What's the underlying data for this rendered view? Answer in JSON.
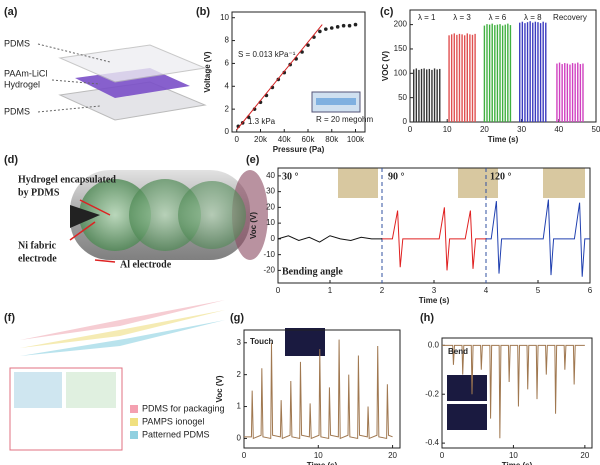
{
  "diagrams": {
    "a": {
      "label": "(a)",
      "texts": [
        "PDMS",
        "PAAm-LiCl",
        "Hydrogel",
        "PDMS"
      ]
    },
    "d": {
      "label": "(d)",
      "texts": [
        "Hydrogel encapsulated",
        "by PDMS",
        "Ni fabric",
        "electrode",
        "Al electrode"
      ]
    },
    "f": {
      "label": "(f)",
      "texts": [
        "PDMS for packaging",
        "PAMPS ionogel",
        "Patterned PDMS"
      ]
    }
  },
  "chart_data": [
    {
      "type": "scatter",
      "label": "(b)",
      "xlabel": "Pressure (Pa)",
      "ylabel": "Voltage (V)",
      "xlim": [
        -4000,
        108000
      ],
      "ylim": [
        0,
        10.5
      ],
      "xticks": [
        0,
        {
          "value": 20000,
          "label": "20k"
        },
        {
          "value": 40000,
          "label": "40k"
        },
        {
          "value": 60000,
          "label": "60k"
        },
        {
          "value": 80000,
          "label": "80k"
        },
        {
          "value": 100000,
          "label": "100k"
        }
      ],
      "yticks": [
        0,
        2,
        4,
        6,
        8,
        10
      ],
      "series": [
        {
          "color": "#222222",
          "x": [
            1300,
            5000,
            10000,
            15000,
            20000,
            25000,
            30000,
            35000,
            40000,
            45000,
            50000,
            55000,
            60000,
            65000,
            70000,
            75000,
            80000,
            85000,
            90000,
            95000,
            100000
          ],
          "values": [
            0.5,
            0.8,
            1.3,
            2.0,
            2.6,
            3.2,
            3.9,
            4.6,
            5.2,
            5.9,
            6.4,
            7.0,
            7.6,
            8.3,
            8.8,
            9.0,
            9.1,
            9.2,
            9.3,
            9.3,
            9.4
          ]
        },
        {
          "color": "#d42020",
          "style": "line",
          "x": [
            0,
            72000
          ],
          "values": [
            0.2,
            9.4
          ]
        }
      ],
      "annotations": [
        "S = 0.013 kPa⁻¹",
        "1.3 kPa",
        "R = 20 megohm"
      ]
    },
    {
      "type": "stem",
      "label": "(c)",
      "xlabel": "Time (s)",
      "ylabel": "VOC (V)",
      "xlim": [
        0,
        50
      ],
      "ylim": [
        0,
        230
      ],
      "xticks": [
        0,
        10,
        20,
        30,
        40,
        50
      ],
      "yticks": [
        0,
        50,
        100,
        150,
        200
      ],
      "series": [
        {
          "name": "λ = 1",
          "color": "#333333",
          "x": [
            1,
            1.7,
            2.4,
            3.1,
            3.8,
            4.5,
            5.2,
            5.9,
            6.6,
            7.3,
            8.0
          ],
          "values": [
            108,
            110,
            107,
            109,
            110,
            108,
            109,
            107,
            110,
            108,
            109
          ]
        },
        {
          "name": "λ = 3",
          "color": "#e05050",
          "x": [
            10.5,
            11.2,
            11.9,
            12.6,
            13.3,
            14,
            14.7,
            15.4,
            16.1,
            16.8,
            17.5
          ],
          "values": [
            178,
            180,
            182,
            179,
            181,
            180,
            178,
            182,
            180,
            179,
            181
          ]
        },
        {
          "name": "λ = 6",
          "color": "#40b040",
          "x": [
            20,
            20.7,
            21.4,
            22.1,
            22.8,
            23.5,
            24.2,
            24.9,
            25.6,
            26.3,
            27
          ],
          "values": [
            198,
            201,
            200,
            202,
            199,
            200,
            201,
            198,
            200,
            202,
            199
          ]
        },
        {
          "name": "λ = 8",
          "color": "#3a3ac0",
          "x": [
            29.5,
            30.2,
            30.9,
            31.6,
            32.3,
            33,
            33.7,
            34.4,
            35.1,
            35.8,
            36.5
          ],
          "values": [
            204,
            206,
            203,
            205,
            207,
            204,
            206,
            205,
            203,
            206,
            204
          ]
        },
        {
          "name": "Recovery",
          "color": "#d040c0",
          "x": [
            39.5,
            40.2,
            40.9,
            41.6,
            42.3,
            43,
            43.7,
            44.4,
            45.1,
            45.8,
            46.5
          ],
          "values": [
            120,
            122,
            119,
            121,
            120,
            118,
            121,
            120,
            122,
            119,
            120
          ]
        }
      ]
    },
    {
      "type": "line",
      "label": "(e)",
      "xlabel": "Time (s)",
      "ylabel": "Voc (V)",
      "xlim": [
        0,
        6
      ],
      "ylim": [
        -28,
        45
      ],
      "xticks": [
        0,
        1,
        2,
        3,
        4,
        5,
        6
      ],
      "yticks": [
        -20,
        -10,
        0,
        10,
        20,
        30,
        40
      ],
      "dividers": [
        2,
        4
      ],
      "series": [
        {
          "color": "#111111",
          "x": [
            0,
            0.2,
            0.4,
            0.6,
            0.8,
            1.0,
            1.2,
            1.4,
            1.6,
            1.8,
            2.0
          ],
          "values": [
            0,
            2,
            -1,
            1,
            -2,
            2,
            0,
            -1,
            1,
            0,
            0
          ]
        },
        {
          "color": "#e02020",
          "x": [
            2.0,
            2.2,
            2.3,
            2.35,
            2.4,
            2.5,
            3.1,
            3.2,
            3.25,
            3.3,
            3.4,
            3.6,
            3.7,
            3.75,
            3.8,
            4.0
          ],
          "values": [
            0,
            0,
            18,
            -18,
            0,
            0,
            0,
            20,
            -20,
            0,
            0,
            0,
            18,
            -19,
            0,
            0
          ]
        },
        {
          "color": "#2040b0",
          "x": [
            4.0,
            4.1,
            4.2,
            4.25,
            4.3,
            4.4,
            5.1,
            5.2,
            5.25,
            5.3,
            5.4,
            5.7,
            5.8,
            5.85,
            5.9,
            6.0
          ],
          "values": [
            0,
            0,
            24,
            -22,
            0,
            0,
            0,
            25,
            -23,
            0,
            0,
            0,
            23,
            -24,
            0,
            0
          ]
        }
      ],
      "annotations": [
        "30 °",
        "90 °",
        "120 °",
        "Bending angle"
      ]
    },
    {
      "type": "line",
      "label": "(g)",
      "xlabel": "Time (s)",
      "ylabel": "Voc (V)",
      "xlim": [
        0,
        21
      ],
      "ylim": [
        -0.3,
        3.4
      ],
      "xticks": [
        0,
        10,
        20
      ],
      "yticks": [
        0,
        1,
        2,
        3
      ],
      "series": [
        {
          "color": "#a07850",
          "x": [
            0,
            1.0,
            1.1,
            1.25,
            2.3,
            2.4,
            2.55,
            3.6,
            3.7,
            3.85,
            4.9,
            5.0,
            5.15,
            6.2,
            6.3,
            6.45,
            7.5,
            7.6,
            7.75,
            8.8,
            8.9,
            9.05,
            10.1,
            10.2,
            10.35,
            11.4,
            11.5,
            11.65,
            12.7,
            12.8,
            12.95,
            14.0,
            14.1,
            14.25,
            15.3,
            15.4,
            15.55,
            16.6,
            16.7,
            16.85,
            17.9,
            18.0,
            18.15,
            19.2,
            19.3,
            19.45,
            20
          ],
          "values": [
            0.05,
            0.05,
            1.5,
            0.0,
            0.1,
            2.2,
            0.05,
            0.0,
            3.0,
            0.1,
            0.05,
            1.2,
            0.0,
            0.1,
            1.8,
            0.05,
            0.0,
            2.4,
            0.1,
            0.05,
            1.1,
            0.0,
            0.1,
            2.8,
            0.05,
            0.0,
            1.6,
            0.1,
            0.05,
            3.1,
            0.0,
            0.1,
            2.0,
            0.05,
            0.0,
            2.6,
            0.1,
            0.05,
            1.0,
            0.0,
            0.1,
            2.9,
            0.05,
            0.0,
            1.7,
            0.1,
            0.05
          ]
        }
      ],
      "annotations": [
        "Touch"
      ]
    },
    {
      "type": "line",
      "label": "(h)",
      "xlabel": "Time (s)",
      "ylabel": "",
      "xlim": [
        0,
        21
      ],
      "ylim": [
        -0.42,
        0.03
      ],
      "xticks": [
        0,
        10,
        20
      ],
      "yticks": [
        {
          "value": 0,
          "label": "0.0"
        },
        -0.2,
        -0.4
      ],
      "series": [
        {
          "color": "#a07850",
          "x": [
            0,
            1.5,
            1.6,
            1.75,
            2.8,
            2.9,
            3.05,
            4.1,
            4.2,
            4.35,
            5.4,
            5.5,
            5.65,
            6.7,
            6.8,
            6.95,
            8.0,
            8.1,
            8.25,
            9.3,
            9.4,
            9.55,
            10.6,
            10.7,
            10.85,
            11.9,
            12.0,
            12.15,
            13.2,
            13.3,
            13.45,
            14.5,
            14.6,
            14.75,
            15.8,
            15.9,
            16.05,
            17.1,
            17.2,
            17.35,
            18.4,
            18.5,
            18.65,
            20
          ],
          "values": [
            0,
            0,
            -0.08,
            0,
            0,
            -0.12,
            0,
            0,
            -0.2,
            0,
            0,
            -0.1,
            0,
            0,
            -0.3,
            0,
            0,
            -0.38,
            0,
            0,
            -0.15,
            0,
            0,
            -0.25,
            0,
            0,
            -0.18,
            0,
            0,
            -0.22,
            0,
            0,
            -0.12,
            0,
            0,
            -0.28,
            0,
            0,
            -0.1,
            0,
            0,
            -0.16,
            0,
            0
          ]
        }
      ],
      "annotations": [
        "Bend"
      ]
    }
  ]
}
